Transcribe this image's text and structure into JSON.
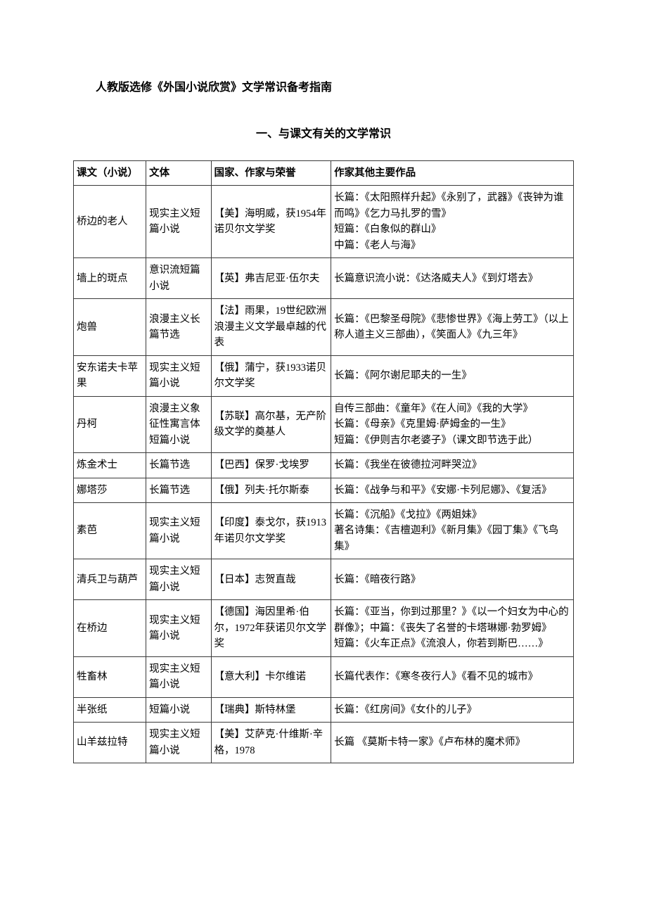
{
  "doc": {
    "title": "人教版选修《外国小说欣赏》文学常识备考指南",
    "section_title": "一、与课文有关的文学常识"
  },
  "table": {
    "headers": [
      "课文（小说）",
      "文体",
      "国家、作家与荣誉",
      "作家其他主要作品"
    ],
    "rows": [
      {
        "c1": "桥边的老人",
        "c2": "现实主义短篇小说",
        "c3": "【美】海明威，获1954年诺贝尔文学奖",
        "c4": "长篇：《太阳照样升起》《永别了，武器》《丧钟为谁而鸣》《乞力马扎罗的雪》\n短篇：《白象似的群山》\n中篇：《老人与海》"
      },
      {
        "c1": "墙上的斑点",
        "c2": "意识流短篇小说",
        "c3": "【英】弗吉尼亚·伍尔夫",
        "c4": "长篇意识流小说：《达洛威夫人》《到灯塔去》"
      },
      {
        "c1": "炮兽",
        "c2": "浪漫主义长篇节选",
        "c3": "【法】雨果，19世纪欧洲浪漫主义文学最卓越的代表",
        "c4": "长篇：《巴黎圣母院》《悲惨世界》《海上劳工》（以上称人道主义三部曲），《笑面人》《九三年》"
      },
      {
        "c1": "安东诺夫卡苹果",
        "c2": "现实主义短篇小说",
        "c3": "【俄】蒲宁，获1933诺贝尔文学奖",
        "c4": "长篇：《阿尔谢尼耶夫的一生》"
      },
      {
        "c1": "丹柯",
        "c2": "浪漫主义象征性寓言体短篇小说",
        "c3": "【苏联】高尔基，无产阶级文学的奠基人",
        "c4": "自传三部曲：《童年》《在人间》《我的大学》\n长篇：《母亲》《克里姆·萨姆金的一生》\n短篇：《伊则吉尔老婆子》（课文即节选于此）"
      },
      {
        "c1": "炼金术士",
        "c2": "长篇节选",
        "c3": "【巴西】保罗·戈埃罗",
        "c4": "长篇：《我坐在彼德拉河畔哭泣》"
      },
      {
        "c1": "娜塔莎",
        "c2": "长篇节选",
        "c3": "【俄】列夫·托尔斯泰",
        "c4": "长篇：《战争与和平》《安娜·卡列尼娜》、《复活》"
      },
      {
        "c1": "素芭",
        "c2": "现实主义短篇小说",
        "c3": "【印度】泰戈尔，获1913年诺贝尔文学奖",
        "c4": "长篇：《沉船》《戈拉》《两姐妹》\n著名诗集：《吉檀迦利》《新月集》《园丁集》《飞鸟集》"
      },
      {
        "c1": "清兵卫与葫芦",
        "c2": "现实主义短篇小说",
        "c3": "【日本】志贺直哉",
        "c4": "长篇：《暗夜行路》"
      },
      {
        "c1": "在桥边",
        "c2": "现实主义短篇小说",
        "c3": "【德国】海因里希·伯尔，1972年获诺贝尔文学奖",
        "c4": "长篇：《亚当，你到过那里？》《以一个妇女为中心的群像》；中篇：《丧失了名誉的卡塔琳娜·勃罗姆》\n短篇：《火车正点》《流浪人，你若到斯巴……》"
      },
      {
        "c1": "牲畜林",
        "c2": "现实主义短篇小说",
        "c3": "【意大利】卡尔维诺",
        "c4": "长篇代表作：《寒冬夜行人》《看不见的城市》"
      },
      {
        "c1": "半张纸",
        "c2": "短篇小说",
        "c3": "【瑞典】斯特林堡",
        "c4": "长篇：《红房间》《女仆的儿子》"
      },
      {
        "c1": "山羊兹拉特",
        "c2": "现实主义短篇小说",
        "c3": "【美】艾萨克·什维斯·辛格，1978",
        "c4": "长篇 《莫斯卡特一家》《卢布林的魔术师》"
      }
    ]
  }
}
